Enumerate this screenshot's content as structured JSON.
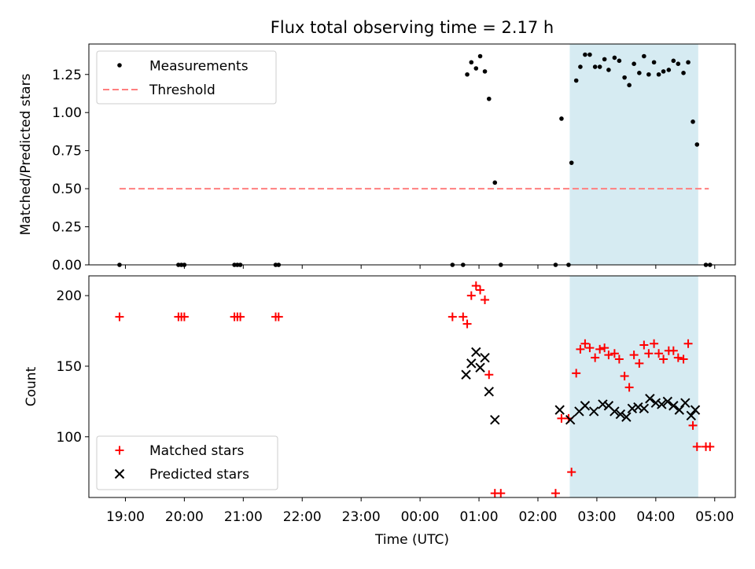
{
  "chart_data": {
    "title": "Flux total observing time = 2.17 h",
    "xlabel": "Time (UTC)",
    "x_unit": "hours after 00:00 (negative = previous day)",
    "xlim": [
      -5.62,
      5.35
    ],
    "xticks": [
      {
        "value": -5,
        "label": "19:00"
      },
      {
        "value": -4,
        "label": "20:00"
      },
      {
        "value": -3,
        "label": "21:00"
      },
      {
        "value": -2,
        "label": "22:00"
      },
      {
        "value": -1,
        "label": "23:00"
      },
      {
        "value": 0,
        "label": "00:00"
      },
      {
        "value": 1,
        "label": "01:00"
      },
      {
        "value": 2,
        "label": "02:00"
      },
      {
        "value": 3,
        "label": "03:00"
      },
      {
        "value": 4,
        "label": "04:00"
      },
      {
        "value": 5,
        "label": "05:00"
      }
    ],
    "highlight_span": [
      2.54,
      4.72
    ],
    "colors": {
      "highlight": "#add8e6",
      "threshold": "#ff7f7f",
      "matched": "#ff0000",
      "predicted": "#000000"
    },
    "top": {
      "type": "scatter",
      "ylabel": "Matched/Predicted stars",
      "ylim": [
        0,
        1.45
      ],
      "yticks": [
        {
          "value": 0,
          "label": "0.00"
        },
        {
          "value": 0.25,
          "label": "0.25"
        },
        {
          "value": 0.5,
          "label": "0.50"
        },
        {
          "value": 0.75,
          "label": "0.75"
        },
        {
          "value": 1.0,
          "label": "1.00"
        },
        {
          "value": 1.25,
          "label": "1.25"
        }
      ],
      "legend": [
        "Measurements",
        "Threshold"
      ],
      "threshold": {
        "value": 0.5,
        "x_range": [
          -5.1,
          4.9
        ]
      },
      "x": [
        -5.1,
        -4.1,
        -4.05,
        -4.0,
        -3.15,
        -3.1,
        -3.05,
        -2.45,
        -2.4,
        0.55,
        0.73,
        0.8,
        0.87,
        0.95,
        1.02,
        1.1,
        1.17,
        1.27,
        1.37,
        2.3,
        2.4,
        2.52,
        2.57,
        2.65,
        2.72,
        2.8,
        2.88,
        2.97,
        3.05,
        3.13,
        3.2,
        3.3,
        3.38,
        3.47,
        3.55,
        3.63,
        3.72,
        3.8,
        3.88,
        3.97,
        4.05,
        4.13,
        4.22,
        4.3,
        4.38,
        4.47,
        4.55,
        4.63,
        4.7,
        4.85,
        4.92
      ],
      "y": [
        0,
        0,
        0,
        0,
        0,
        0,
        0,
        0,
        0,
        0,
        0,
        1.25,
        1.33,
        1.29,
        1.37,
        1.27,
        1.09,
        0.54,
        0,
        0,
        0.96,
        0,
        0.67,
        1.21,
        1.3,
        1.38,
        1.38,
        1.3,
        1.3,
        1.35,
        1.28,
        1.36,
        1.34,
        1.23,
        1.18,
        1.32,
        1.26,
        1.37,
        1.25,
        1.33,
        1.25,
        1.27,
        1.28,
        1.34,
        1.32,
        1.26,
        1.33,
        0.94,
        0.79,
        0,
        0
      ]
    },
    "bottom": {
      "type": "scatter",
      "ylabel": "Count",
      "ylim": [
        57,
        214
      ],
      "yticks": [
        {
          "value": 100,
          "label": "100"
        },
        {
          "value": 150,
          "label": "150"
        },
        {
          "value": 200,
          "label": "200"
        }
      ],
      "legend": [
        "Matched stars",
        "Predicted stars"
      ],
      "matched": {
        "x": [
          -5.1,
          -4.1,
          -4.05,
          -4.0,
          -3.15,
          -3.1,
          -3.05,
          -2.45,
          -2.4,
          0.55,
          0.73,
          0.8,
          0.87,
          0.95,
          1.02,
          1.1,
          1.17,
          1.27,
          1.37,
          2.3,
          2.4,
          2.52,
          2.57,
          2.65,
          2.72,
          2.8,
          2.88,
          2.97,
          3.05,
          3.13,
          3.2,
          3.3,
          3.38,
          3.47,
          3.55,
          3.63,
          3.72,
          3.8,
          3.88,
          3.97,
          4.05,
          4.13,
          4.22,
          4.3,
          4.38,
          4.47,
          4.55,
          4.63,
          4.7,
          4.85,
          4.92
        ],
        "y": [
          185,
          185,
          185,
          185,
          185,
          185,
          185,
          185,
          185,
          185,
          185,
          180,
          200,
          207,
          204,
          197,
          144,
          60,
          60,
          60,
          113,
          113,
          75,
          145,
          162,
          166,
          163,
          156,
          162,
          163,
          158,
          159,
          155,
          143,
          135,
          158,
          152,
          165,
          159,
          166,
          159,
          155,
          161,
          161,
          156,
          155,
          166,
          108,
          93,
          93,
          93
        ]
      },
      "predicted": {
        "x": [
          0.78,
          0.87,
          0.95,
          1.02,
          1.1,
          1.17,
          1.27,
          2.37,
          2.55,
          2.7,
          2.8,
          2.95,
          3.1,
          3.2,
          3.3,
          3.4,
          3.5,
          3.6,
          3.7,
          3.8,
          3.9,
          4.0,
          4.1,
          4.2,
          4.3,
          4.4,
          4.5,
          4.6,
          4.67
        ],
        "y": [
          144,
          152,
          160,
          149,
          156,
          132,
          112,
          119,
          112,
          118,
          122,
          118,
          123,
          122,
          118,
          116,
          114,
          120,
          121,
          120,
          127,
          124,
          123,
          125,
          122,
          119,
          124,
          115,
          119
        ]
      }
    }
  }
}
